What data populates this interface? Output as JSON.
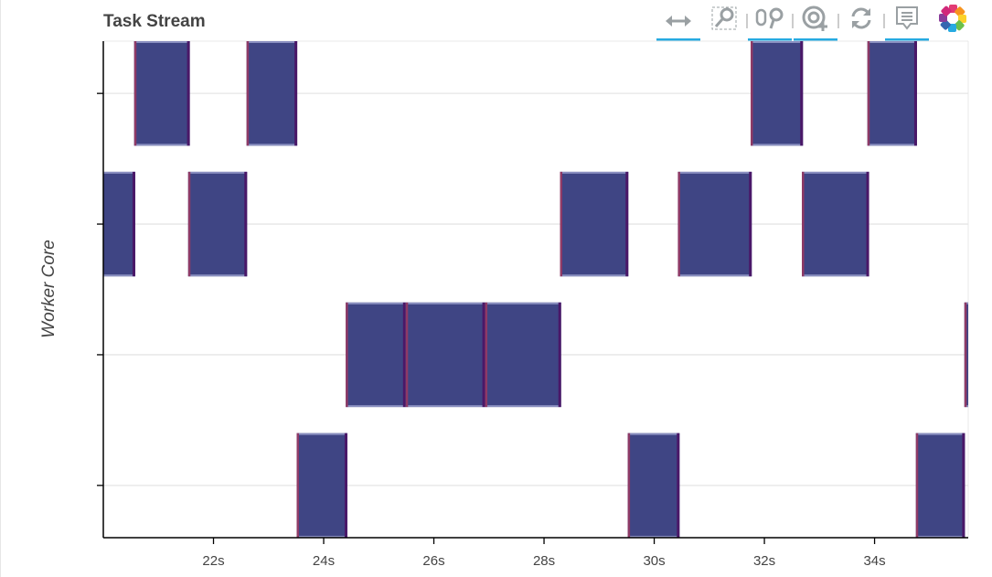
{
  "title": "Task Stream",
  "toolbar": [
    {
      "name": "xpan-tool",
      "icon": "horizontal-arrows-icon",
      "active": true
    },
    {
      "name": "box-zoom-tool",
      "icon": "box-zoom-icon",
      "active": false
    },
    {
      "name": "wheel-zoom-tool",
      "icon": "wheel-zoom-icon",
      "active": true
    },
    {
      "name": "zoom-in-tool",
      "icon": "zoom-in-icon",
      "active": true
    },
    {
      "name": "reset-tool",
      "icon": "reset-icon",
      "active": false
    },
    {
      "name": "hover-tool",
      "icon": "tooltip-icon",
      "active": true
    },
    {
      "name": "bokeh-logo",
      "icon": "bokeh-logo-icon",
      "active": false
    }
  ],
  "chart_data": {
    "type": "bar",
    "title": "Task Stream",
    "xlabel": "",
    "ylabel": "Worker Core",
    "xlim": [
      20.0,
      35.7
    ],
    "ylim": [
      -0.4,
      3.4
    ],
    "xticks": [
      22,
      24,
      26,
      28,
      30,
      32,
      34
    ],
    "xtick_labels": [
      "22s",
      "24s",
      "26s",
      "28s",
      "30s",
      "32s",
      "34s"
    ],
    "yticks": [
      0,
      1,
      2,
      3
    ],
    "grid": "horizontal",
    "bar_height": 0.8,
    "colors": {
      "fill": "#3f4584",
      "left_edge": "#8e3a66",
      "right_edge": "#4a1868",
      "top_edge": "#8a8fc0"
    },
    "tasks": [
      {
        "row": 3,
        "start": 20.56,
        "end": 21.57
      },
      {
        "row": 3,
        "start": 22.6,
        "end": 23.52
      },
      {
        "row": 3,
        "start": 31.75,
        "end": 32.7
      },
      {
        "row": 3,
        "start": 33.87,
        "end": 34.77
      },
      {
        "row": 2,
        "start": 19.9,
        "end": 20.58
      },
      {
        "row": 2,
        "start": 21.54,
        "end": 22.61
      },
      {
        "row": 2,
        "start": 28.29,
        "end": 29.53
      },
      {
        "row": 2,
        "start": 30.43,
        "end": 31.77
      },
      {
        "row": 2,
        "start": 32.68,
        "end": 33.9
      },
      {
        "row": 1,
        "start": 24.4,
        "end": 25.49
      },
      {
        "row": 1,
        "start": 25.49,
        "end": 26.93
      },
      {
        "row": 1,
        "start": 26.93,
        "end": 28.31
      },
      {
        "row": 1,
        "start": 35.63,
        "end": 35.8
      },
      {
        "row": 0,
        "start": 23.51,
        "end": 24.43
      },
      {
        "row": 0,
        "start": 29.52,
        "end": 30.46
      },
      {
        "row": 0,
        "start": 34.75,
        "end": 35.64
      }
    ]
  }
}
